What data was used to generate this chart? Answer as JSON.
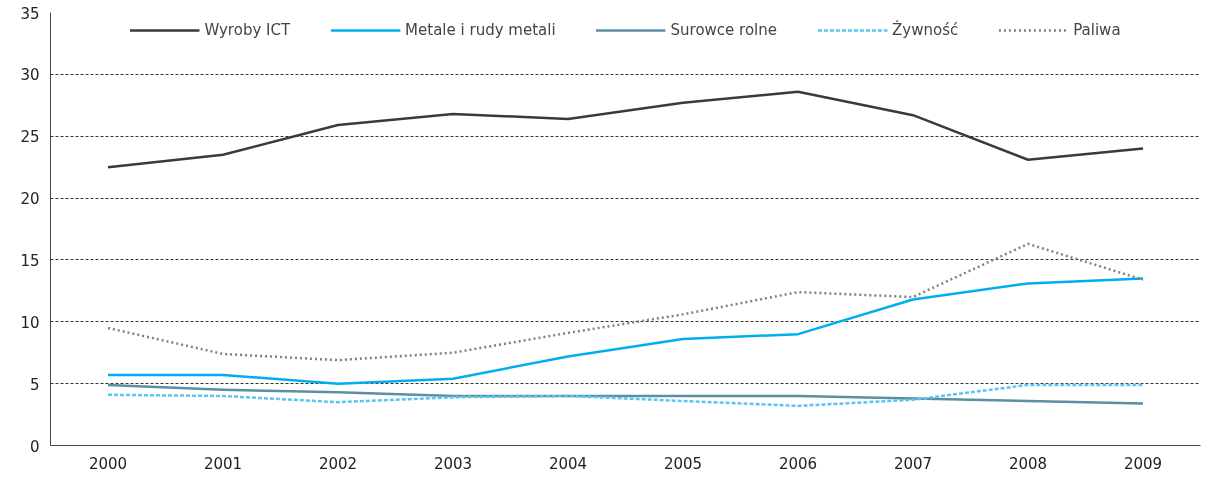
{
  "chart_data": {
    "type": "line",
    "categories": [
      "2000",
      "2001",
      "2002",
      "2003",
      "2004",
      "2005",
      "2006",
      "2007",
      "2008",
      "2009"
    ],
    "ylim": [
      0,
      35
    ],
    "yticks": [
      0,
      5,
      10,
      15,
      20,
      25,
      30,
      35
    ],
    "grid": "y",
    "legend": "top",
    "marker": "none",
    "series": [
      {
        "name": "Wyroby ICT",
        "color": "#3a3a3c",
        "line_style": "solid",
        "values": [
          22.5,
          23.5,
          25.9,
          26.8,
          26.4,
          27.7,
          28.6,
          26.7,
          23.1,
          24.0
        ]
      },
      {
        "name": "Metale i rudy metali",
        "color": "#00aeef",
        "line_style": "solid",
        "values": [
          5.7,
          5.7,
          5.0,
          5.4,
          7.2,
          8.6,
          9.0,
          11.8,
          13.1,
          13.5
        ]
      },
      {
        "name": "Surowce rolne",
        "color": "#5b8fa3",
        "line_style": "solid",
        "values": [
          4.9,
          4.5,
          4.3,
          4.0,
          4.0,
          4.0,
          4.0,
          3.8,
          3.6,
          3.4
        ]
      },
      {
        "name": "Żywność",
        "color": "#5bc5f2",
        "line_style": "dashed",
        "values": [
          4.1,
          4.0,
          3.5,
          3.9,
          4.0,
          3.6,
          3.2,
          3.7,
          4.9,
          4.9
        ]
      },
      {
        "name": "Paliwa",
        "color": "#808080",
        "line_style": "dotted",
        "values": [
          9.5,
          7.4,
          6.9,
          7.5,
          9.1,
          10.6,
          12.4,
          12.0,
          16.3,
          13.4
        ]
      }
    ]
  }
}
